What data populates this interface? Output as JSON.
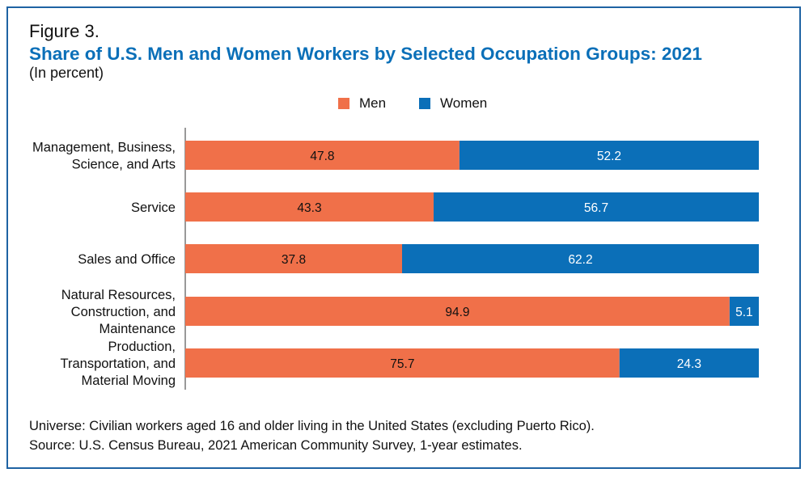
{
  "figure_label": "Figure 3.",
  "colors": {
    "men": "#f07049",
    "women": "#0b6fb8",
    "axis": "#333333",
    "border": "#1f63a3"
  },
  "chart_data": {
    "type": "bar",
    "orientation": "horizontal",
    "stacked": true,
    "title": "Share of U.S. Men and Women Workers by Selected Occupation Groups: 2021",
    "subtitle": "(In percent)",
    "categories": [
      [
        "Management, Business,",
        "Science, and Arts"
      ],
      [
        "Service"
      ],
      [
        "Sales and Office"
      ],
      [
        "Natural Resources,",
        "Construction, and",
        "Maintenance"
      ],
      [
        "Production,",
        "Transportation, and",
        "Material Moving"
      ]
    ],
    "series": [
      {
        "name": "Men",
        "values": [
          47.8,
          43.3,
          37.8,
          94.9,
          75.7
        ]
      },
      {
        "name": "Women",
        "values": [
          52.2,
          56.7,
          62.2,
          5.1,
          24.3
        ]
      }
    ],
    "xlim": [
      0,
      100
    ],
    "legend_position": "top-center",
    "grid": false
  },
  "footer": {
    "universe": "Universe: Civilian workers aged 16 and older living in the United States (excluding Puerto Rico).",
    "source": "Source: U.S. Census Bureau, 2021 American Community Survey, 1-year estimates."
  }
}
